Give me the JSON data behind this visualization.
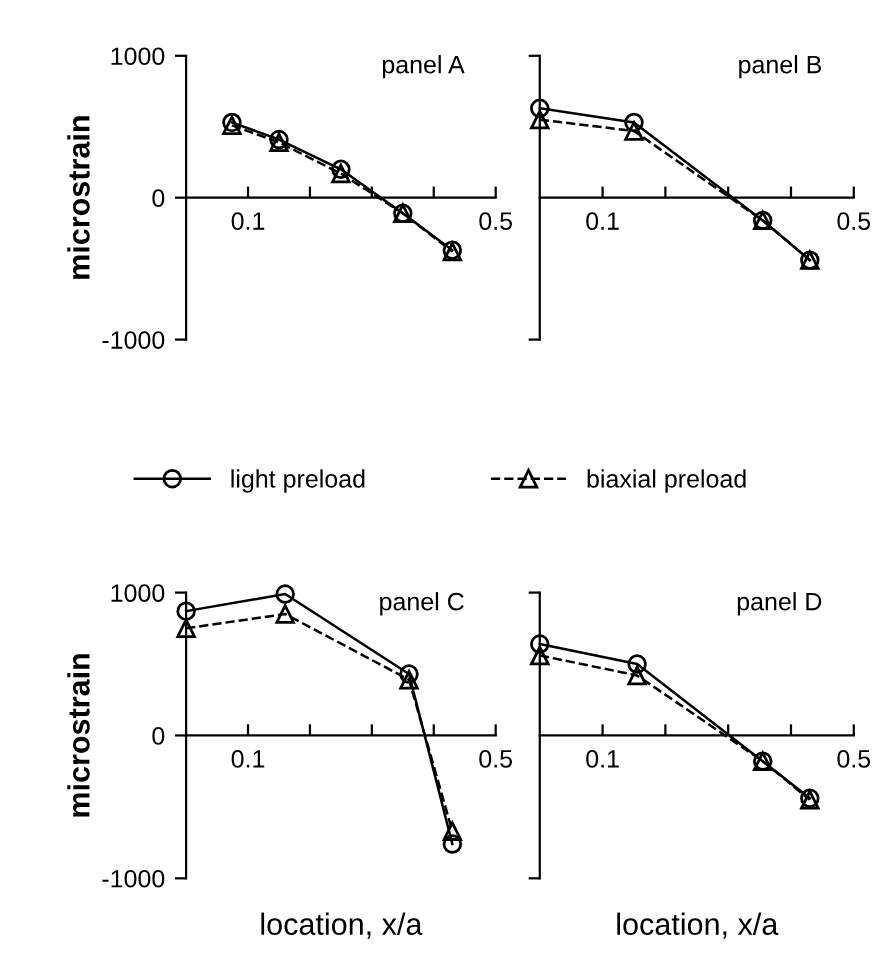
{
  "chart_data": [
    {
      "type": "line",
      "title": "panel A",
      "ylabel": "microstrain",
      "xlim": [
        0,
        0.5
      ],
      "ylim": [
        -1000,
        1000
      ],
      "xticks": [
        {
          "value": 0.1,
          "label": "0.1"
        },
        {
          "value": 0.2,
          "label": null
        },
        {
          "value": 0.3,
          "label": null
        },
        {
          "value": 0.4,
          "label": null
        },
        {
          "value": 0.5,
          "label": "0.5"
        }
      ],
      "yticks": [
        -1000,
        0,
        1000
      ],
      "legend": "bottom",
      "grid": false,
      "series": [
        {
          "name": "light preload",
          "color": "#000000",
          "marker": "circle",
          "line_style": "solid",
          "x": [
            0.074,
            0.15,
            0.25,
            0.35,
            0.43
          ],
          "values": [
            530,
            410,
            200,
            -110,
            -370
          ]
        },
        {
          "name": "biaxial preload",
          "color": "#000000",
          "marker": "triangle",
          "line_style": "dashed",
          "x": [
            0.074,
            0.15,
            0.25,
            0.35,
            0.43
          ],
          "values": [
            510,
            390,
            170,
            -110,
            -380
          ]
        }
      ]
    },
    {
      "type": "line",
      "title": "panel B",
      "xlim": [
        0,
        0.5
      ],
      "ylim": [
        -1000,
        1000
      ],
      "xticks": [
        {
          "value": 0.1,
          "label": "0.1"
        },
        {
          "value": 0.2,
          "label": null
        },
        {
          "value": 0.3,
          "label": null
        },
        {
          "value": 0.4,
          "label": null
        },
        {
          "value": 0.5,
          "label": "0.5"
        }
      ],
      "tick_labels": "x",
      "grid": false,
      "series": [
        {
          "color": "#000000",
          "marker": "circle",
          "line_style": "solid",
          "x": [
            0.0,
            0.15,
            0.355,
            0.43
          ],
          "values": [
            630,
            530,
            -160,
            -440
          ]
        },
        {
          "color": "#000000",
          "marker": "triangle",
          "line_style": "dashed",
          "x": [
            0.0,
            0.15,
            0.355,
            0.43
          ],
          "values": [
            550,
            470,
            -160,
            -440
          ]
        }
      ]
    },
    {
      "type": "line",
      "title": "panel C",
      "ylabel": "microstrain",
      "xlabel": "location, x/a",
      "xlim": [
        0,
        0.5
      ],
      "ylim": [
        -1000,
        1000
      ],
      "xticks": [
        {
          "value": 0.1,
          "label": "0.1"
        },
        {
          "value": 0.2,
          "label": null
        },
        {
          "value": 0.3,
          "label": null
        },
        {
          "value": 0.4,
          "label": null
        },
        {
          "value": 0.5,
          "label": "0.5"
        }
      ],
      "yticks": [
        -1000,
        0,
        1000
      ],
      "grid": false,
      "series": [
        {
          "color": "#000000",
          "marker": "circle",
          "line_style": "solid",
          "x": [
            0.0,
            0.16,
            0.36,
            0.43
          ],
          "values": [
            870,
            990,
            430,
            -760
          ]
        },
        {
          "color": "#000000",
          "marker": "triangle",
          "line_style": "dashed",
          "x": [
            0.0,
            0.16,
            0.36,
            0.43
          ],
          "values": [
            750,
            850,
            390,
            -670
          ]
        }
      ]
    },
    {
      "type": "line",
      "title": "panel D",
      "xlabel": "location, x/a",
      "xlim": [
        0,
        0.5
      ],
      "ylim": [
        -1000,
        1000
      ],
      "xticks": [
        {
          "value": 0.1,
          "label": "0.1"
        },
        {
          "value": 0.2,
          "label": null
        },
        {
          "value": 0.3,
          "label": null
        },
        {
          "value": 0.4,
          "label": null
        },
        {
          "value": 0.5,
          "label": "0.5"
        }
      ],
      "tick_labels": "x",
      "grid": false,
      "series": [
        {
          "color": "#000000",
          "marker": "circle",
          "line_style": "solid",
          "x": [
            0.0,
            0.155,
            0.355,
            0.43
          ],
          "values": [
            640,
            500,
            -180,
            -440
          ]
        },
        {
          "color": "#000000",
          "marker": "triangle",
          "line_style": "dashed",
          "x": [
            0.0,
            0.155,
            0.355,
            0.43
          ],
          "values": [
            560,
            420,
            -180,
            -450
          ]
        }
      ]
    }
  ]
}
